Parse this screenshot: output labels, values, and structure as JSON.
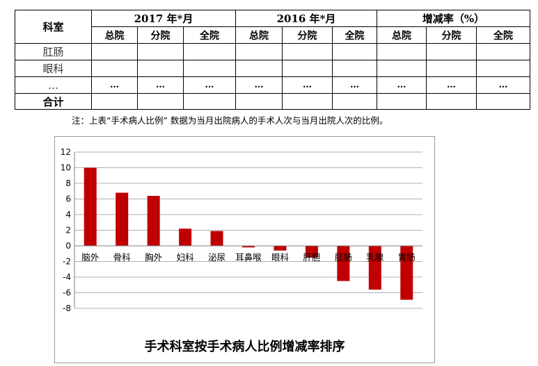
{
  "table": {
    "dept_header": "科室",
    "year_groups": [
      "2017 年*月",
      "2016 年*月",
      "增减率（%）"
    ],
    "sub_headers": [
      "总院",
      "分院",
      "全院"
    ],
    "rows": [
      {
        "dept": "肛肠",
        "cells": [
          "",
          "",
          "",
          "",
          "",
          "",
          "",
          "",
          ""
        ]
      },
      {
        "dept": "眼科",
        "cells": [
          "",
          "",
          "",
          "",
          "",
          "",
          "",
          "",
          ""
        ]
      },
      {
        "dept": "…",
        "cells": [
          "…",
          "…",
          "…",
          "…",
          "…",
          "…",
          "…",
          "…",
          "…"
        ]
      }
    ],
    "total_label": "合计"
  },
  "note": "注：上表“手术病人比例” 数据为当月出院病人的手术人次与当月出院人次的比例。",
  "chart_data": {
    "type": "bar",
    "title": "手术科室按手术病人比例增减率排序",
    "categories": [
      "脑外",
      "骨科",
      "胸外",
      "妇科",
      "泌尿",
      "耳鼻喉",
      "眼科",
      "肝胆",
      "肛肠",
      "乳腺",
      "胃肠"
    ],
    "values": [
      10,
      6.8,
      6.4,
      2.2,
      1.9,
      -0.2,
      -0.6,
      -1.5,
      -4.5,
      -5.6,
      -6.9
    ],
    "ylim": [
      -8,
      12
    ],
    "yticks": [
      -8,
      -6,
      -4,
      -2,
      0,
      2,
      4,
      6,
      8,
      10,
      12
    ],
    "grid": true,
    "bar_color": "#c00000"
  }
}
